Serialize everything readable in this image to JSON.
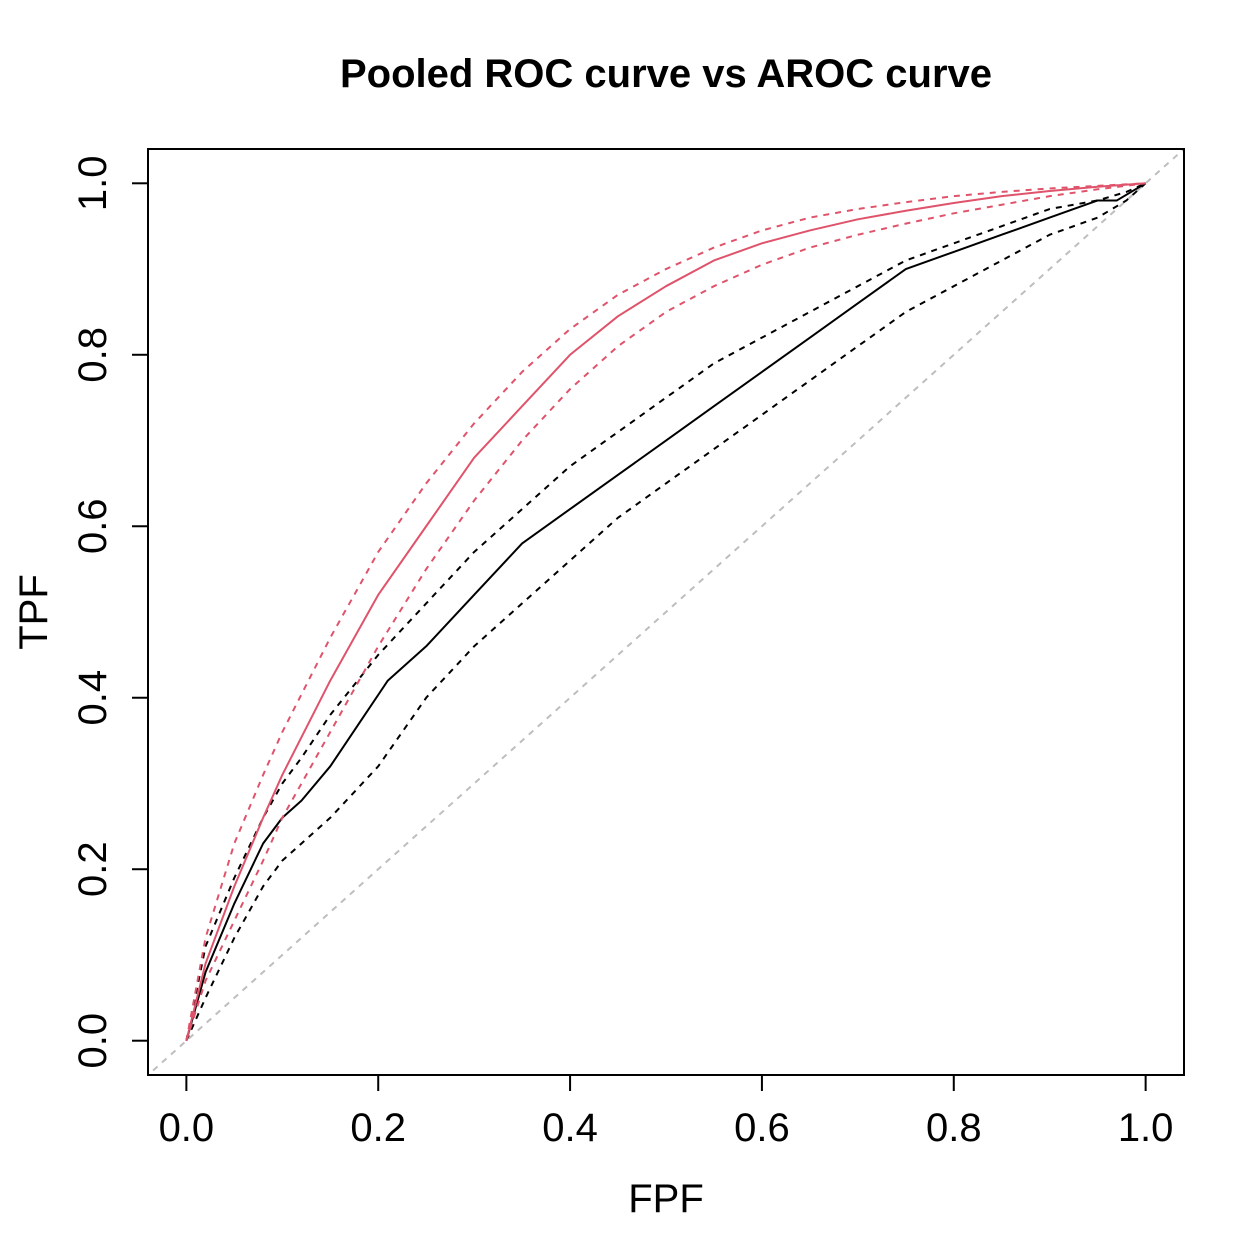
{
  "chart_data": {
    "type": "line",
    "title": "Pooled ROC curve vs AROC curve",
    "xlabel": "FPF",
    "ylabel": "TPF",
    "xlim": [
      0,
      1
    ],
    "ylim": [
      0,
      1
    ],
    "x_ticks": [
      "0.0",
      "0.2",
      "0.4",
      "0.6",
      "0.8",
      "1.0"
    ],
    "y_ticks": [
      "0.0",
      "0.2",
      "0.4",
      "0.6",
      "0.8",
      "1.0"
    ],
    "grid": false,
    "legend": "none",
    "reference_line": {
      "x": [
        0,
        1
      ],
      "y": [
        0,
        1
      ],
      "color": "#bebebe",
      "style": "dashed"
    },
    "series": [
      {
        "role": "pooled",
        "color": "#000000",
        "style": "solid",
        "x": [
          0,
          0.02,
          0.05,
          0.08,
          0.1,
          0.12,
          0.15,
          0.18,
          0.21,
          0.25,
          0.3,
          0.35,
          0.4,
          0.45,
          0.5,
          0.55,
          0.6,
          0.65,
          0.7,
          0.75,
          0.8,
          0.85,
          0.9,
          0.95,
          0.97,
          1.0
        ],
        "y": [
          0,
          0.08,
          0.16,
          0.23,
          0.26,
          0.28,
          0.32,
          0.37,
          0.42,
          0.46,
          0.52,
          0.58,
          0.62,
          0.66,
          0.7,
          0.74,
          0.78,
          0.82,
          0.86,
          0.9,
          0.92,
          0.94,
          0.96,
          0.98,
          0.98,
          1.0
        ]
      },
      {
        "role": "pooled-upper",
        "color": "#000000",
        "style": "dashed",
        "x": [
          0,
          0.02,
          0.05,
          0.08,
          0.1,
          0.12,
          0.15,
          0.2,
          0.25,
          0.3,
          0.35,
          0.4,
          0.45,
          0.5,
          0.55,
          0.6,
          0.65,
          0.7,
          0.75,
          0.8,
          0.85,
          0.9,
          0.95,
          0.98,
          1.0
        ],
        "y": [
          0,
          0.11,
          0.19,
          0.26,
          0.3,
          0.33,
          0.38,
          0.45,
          0.51,
          0.57,
          0.62,
          0.67,
          0.71,
          0.75,
          0.79,
          0.82,
          0.85,
          0.88,
          0.91,
          0.93,
          0.95,
          0.97,
          0.98,
          0.99,
          1.0
        ]
      },
      {
        "role": "pooled-lower",
        "color": "#000000",
        "style": "dashed",
        "x": [
          0,
          0.02,
          0.05,
          0.08,
          0.1,
          0.12,
          0.15,
          0.2,
          0.25,
          0.3,
          0.35,
          0.4,
          0.45,
          0.5,
          0.55,
          0.6,
          0.65,
          0.7,
          0.75,
          0.8,
          0.85,
          0.9,
          0.95,
          0.98,
          1.0
        ],
        "y": [
          0,
          0.05,
          0.12,
          0.18,
          0.21,
          0.23,
          0.26,
          0.32,
          0.4,
          0.46,
          0.51,
          0.56,
          0.61,
          0.65,
          0.69,
          0.73,
          0.77,
          0.81,
          0.85,
          0.88,
          0.91,
          0.94,
          0.96,
          0.98,
          1.0
        ]
      },
      {
        "role": "aroc",
        "color": "#df536b",
        "style": "solid",
        "x": [
          0,
          0.02,
          0.05,
          0.08,
          0.1,
          0.15,
          0.2,
          0.25,
          0.3,
          0.35,
          0.4,
          0.45,
          0.5,
          0.55,
          0.6,
          0.65,
          0.7,
          0.75,
          0.8,
          0.85,
          0.9,
          0.95,
          1.0
        ],
        "y": [
          0,
          0.09,
          0.18,
          0.26,
          0.31,
          0.42,
          0.52,
          0.6,
          0.68,
          0.74,
          0.8,
          0.845,
          0.88,
          0.91,
          0.93,
          0.945,
          0.958,
          0.968,
          0.977,
          0.985,
          0.991,
          0.996,
          1.0
        ]
      },
      {
        "role": "aroc-upper",
        "color": "#df536b",
        "style": "dashed",
        "x": [
          0,
          0.02,
          0.05,
          0.08,
          0.1,
          0.15,
          0.2,
          0.25,
          0.3,
          0.35,
          0.4,
          0.45,
          0.5,
          0.55,
          0.6,
          0.65,
          0.7,
          0.75,
          0.8,
          0.85,
          0.9,
          0.95,
          1.0
        ],
        "y": [
          0,
          0.12,
          0.23,
          0.31,
          0.36,
          0.47,
          0.57,
          0.65,
          0.72,
          0.78,
          0.83,
          0.87,
          0.9,
          0.925,
          0.945,
          0.96,
          0.97,
          0.978,
          0.985,
          0.99,
          0.994,
          0.997,
          1.0
        ]
      },
      {
        "role": "aroc-lower",
        "color": "#df536b",
        "style": "dashed",
        "x": [
          0,
          0.02,
          0.05,
          0.08,
          0.1,
          0.15,
          0.2,
          0.25,
          0.3,
          0.35,
          0.4,
          0.45,
          0.5,
          0.55,
          0.6,
          0.65,
          0.7,
          0.75,
          0.8,
          0.85,
          0.9,
          0.95,
          1.0
        ],
        "y": [
          0,
          0.07,
          0.14,
          0.21,
          0.26,
          0.36,
          0.46,
          0.55,
          0.63,
          0.7,
          0.76,
          0.81,
          0.85,
          0.88,
          0.905,
          0.925,
          0.94,
          0.953,
          0.965,
          0.975,
          0.985,
          0.993,
          1.0
        ]
      }
    ]
  }
}
